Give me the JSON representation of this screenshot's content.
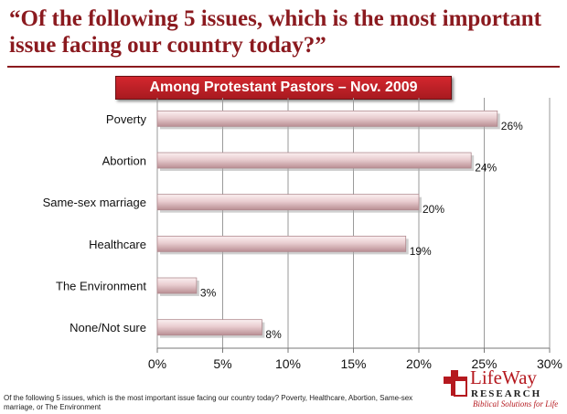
{
  "page": {
    "title": "“Of the following 5 issues, which is the most important issue facing our country today?”",
    "subtitle": "Among Protestant Pastors – Nov. 2009",
    "footnote": "Of the following 5 issues, which is the most important issue facing our country today? Poverty, Healthcare, Abortion, Same-sex marriage, or The Environment"
  },
  "logo": {
    "name": "LifeWay",
    "research": "RESEARCH",
    "tagline": "Biblical Solutions for Life"
  },
  "colors": {
    "title": "#8b1a1f",
    "banner": "#c2212a",
    "bar_light": "#f6e3e5",
    "bar_dark": "#c9a0a5",
    "logo_red": "#b5191f"
  },
  "chart_data": {
    "type": "bar",
    "orientation": "horizontal",
    "title": "“Of the following 5 issues, which is the most important issue facing our country today?”",
    "subtitle": "Among Protestant Pastors – Nov. 2009",
    "categories": [
      "Poverty",
      "Abortion",
      "Same-sex marriage",
      "Healthcare",
      "The Environment",
      "None/Not sure"
    ],
    "values": [
      26,
      24,
      20,
      19,
      3,
      8
    ],
    "value_labels": [
      "26%",
      "24%",
      "20%",
      "19%",
      "3%",
      "8%"
    ],
    "xlim": [
      0,
      30
    ],
    "x_ticks": [
      0,
      5,
      10,
      15,
      20,
      25,
      30
    ],
    "x_tick_labels": [
      "0%",
      "5%",
      "10%",
      "15%",
      "20%",
      "25%",
      "30%"
    ],
    "xlabel": "",
    "ylabel": "",
    "grid": "vertical",
    "legend": "none"
  }
}
